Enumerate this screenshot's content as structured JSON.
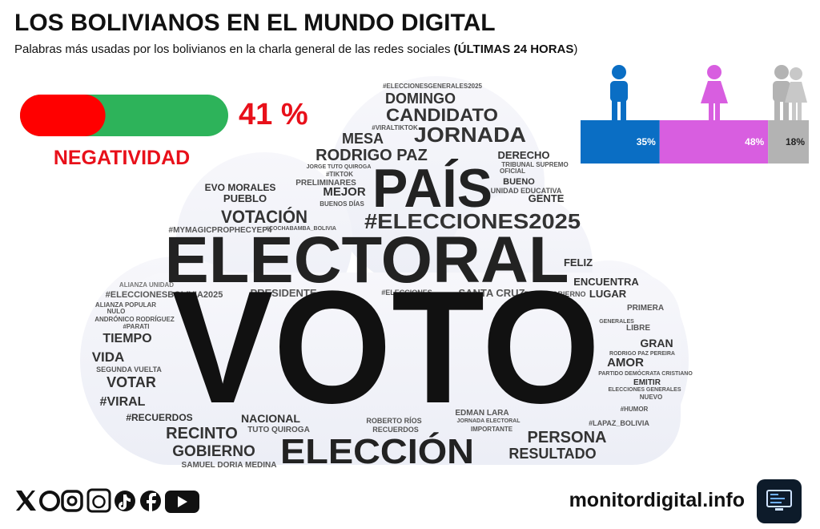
{
  "header": {
    "title": "LOS BOLIVIANOS EN EL MUNDO DIGITAL",
    "subtitle": "Palabras más usadas por los bolivianos en la charla general de las redes sociales",
    "subtitle_bold": "(ÚLTIMAS 24 HORAS",
    "subtitle_close": ")"
  },
  "negativity": {
    "value": 41,
    "label": "41 %",
    "title": "NEGATIVIDAD",
    "color": "#ff0000",
    "rest_color": "#2db35a"
  },
  "gender": {
    "segments": [
      {
        "value": 35,
        "label": "35%",
        "color": "#0a6ec4"
      },
      {
        "value": 48,
        "label": "48%",
        "color": "#d85ee0"
      },
      {
        "value": 18,
        "label": "18%",
        "color": "#b3b3b3"
      }
    ]
  },
  "word_cloud": {
    "words": [
      "#ELECCIONESGENERALES2025",
      "DOMINGO",
      "CANDIDATO",
      "#VIRALTIKTOK",
      "MESA",
      "JORNADA",
      "RODRIGO PAZ",
      "DERECHO",
      "JORGE TUTO QUIROGA",
      "TRIBUNAL SUPREMO",
      "OFICIAL",
      "#TIKTOK",
      "PAÍS",
      "PRELIMINARES",
      "BUENO",
      "EVO MORALES",
      "MEJOR",
      "UNIDAD EDUCATIVA",
      "PUEBLO",
      "GENTE",
      "BUENOS DÍAS",
      "VOTACIÓN",
      "#ELECCIONES2025",
      "#MYMAGICPROPHECYEP4",
      "#COCHABAMBA_BOLIVIA",
      "ELECTORAL",
      "FELIZ",
      "ENCUENTRA",
      "ALIANZA UNIDAD",
      "#ELECCIONESBOLIVIA2025",
      "PRESIDENTE",
      "#ELECCIONES",
      "SANTA CRUZ",
      "BUEN GOBIERNO",
      "LUGAR",
      "ALIANZA POPULAR",
      "NULO",
      "PRIMERA",
      "ANDRÓNICO RODRÍGUEZ",
      "GENERALES",
      "#PARATI",
      "LIBRE",
      "TIEMPO",
      "VOTO",
      "GRAN",
      "RODRIGO PAZ PEREIRA",
      "VIDA",
      "AMOR",
      "SEGUNDA VUELTA",
      "PARTIDO DEMÓCRATA CRISTIANO",
      "VOTAR",
      "EMITIR",
      "ELECCIONES GENERALES",
      "NUEVO",
      "#VIRAL",
      "#HUMOR",
      "#RECUERDOS",
      "EDMAN LARA",
      "NACIONAL",
      "ROBERTO RÍOS",
      "JORNADA ELECTORAL",
      "#LAPAZ_BOLIVIA",
      "RECINTO",
      "TUTO QUIROGA",
      "RECUERDOS",
      "IMPORTANTE",
      "PERSONA",
      "ELECCIÓN",
      "GOBIERNO",
      "RESULTADO",
      "SAMUEL DORIA MEDINA"
    ]
  },
  "footer": {
    "site": "monitordigital.info"
  }
}
